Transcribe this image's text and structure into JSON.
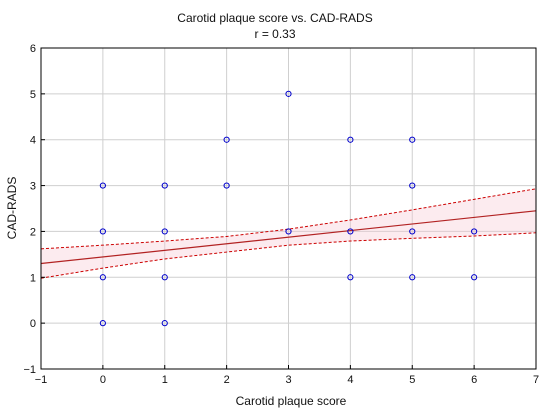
{
  "chart_data": {
    "type": "scatter",
    "title": "Carotid plaque score vs. CAD-RADS",
    "subtitle": "r = 0.33",
    "xlabel": "Carotid plaque score",
    "ylabel": "CAD-RADS",
    "xlim": [
      -1,
      7
    ],
    "ylim": [
      -1,
      6
    ],
    "xticks": [
      -1,
      0,
      1,
      2,
      3,
      4,
      5,
      6,
      7
    ],
    "yticks": [
      -1,
      0,
      1,
      2,
      3,
      4,
      5,
      6
    ],
    "xtick_labels": [
      "−1",
      "0",
      "1",
      "2",
      "3",
      "4",
      "5",
      "6",
      "7"
    ],
    "ytick_labels": [
      "−1",
      "0",
      "1",
      "2",
      "3",
      "4",
      "5",
      "6"
    ],
    "grid": true,
    "points": [
      {
        "x": 0,
        "y": 3
      },
      {
        "x": 0,
        "y": 2
      },
      {
        "x": 0,
        "y": 1
      },
      {
        "x": 0,
        "y": 0
      },
      {
        "x": 1,
        "y": 3
      },
      {
        "x": 1,
        "y": 2
      },
      {
        "x": 1,
        "y": 1
      },
      {
        "x": 1,
        "y": 0
      },
      {
        "x": 2,
        "y": 4
      },
      {
        "x": 2,
        "y": 3
      },
      {
        "x": 3,
        "y": 5
      },
      {
        "x": 3,
        "y": 2
      },
      {
        "x": 4,
        "y": 4
      },
      {
        "x": 4,
        "y": 2
      },
      {
        "x": 4,
        "y": 1
      },
      {
        "x": 5,
        "y": 4
      },
      {
        "x": 5,
        "y": 3
      },
      {
        "x": 5,
        "y": 2
      },
      {
        "x": 5,
        "y": 1
      },
      {
        "x": 6,
        "y": 2
      },
      {
        "x": 6,
        "y": 1
      }
    ],
    "regression": {
      "line": [
        [
          -1,
          1.3
        ],
        [
          7,
          2.45
        ]
      ],
      "ci_upper": [
        [
          -1,
          1.62
        ],
        [
          0,
          1.7
        ],
        [
          1,
          1.79
        ],
        [
          2,
          1.89
        ],
        [
          3,
          2.05
        ],
        [
          4,
          2.25
        ],
        [
          5,
          2.47
        ],
        [
          6,
          2.7
        ],
        [
          7,
          2.93
        ]
      ],
      "ci_lower": [
        [
          -1,
          0.98
        ],
        [
          0,
          1.2
        ],
        [
          1,
          1.4
        ],
        [
          2,
          1.55
        ],
        [
          3,
          1.7
        ],
        [
          4,
          1.79
        ],
        [
          5,
          1.85
        ],
        [
          6,
          1.9
        ],
        [
          7,
          1.97
        ]
      ]
    },
    "colors": {
      "points": "#0000cc",
      "regression": "#b22222",
      "ci": "#cc0000",
      "grid": "#cfcfcf",
      "axis": "#000000"
    }
  }
}
